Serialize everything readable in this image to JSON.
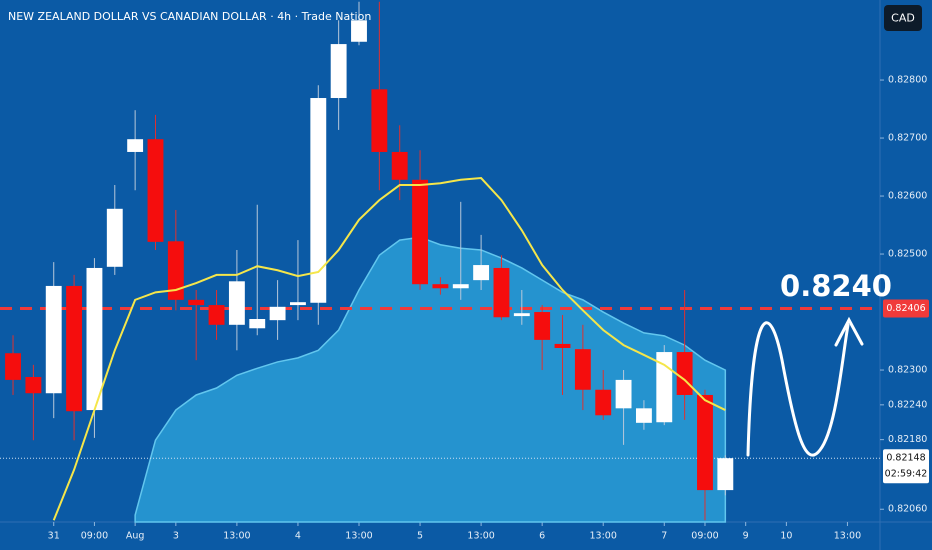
{
  "chart_data": {
    "type": "candlestick",
    "title": "NEW ZEALAND DOLLAR VS CANADIAN DOLLAR · 4h · Trade Nation",
    "currency": "CAD",
    "annotation": "0.8240",
    "ylim": [
      0.82038,
      0.82938
    ],
    "xlim": [
      -0.64,
      42.6
    ],
    "yticks": [
      {
        "value": 0.828,
        "label": "0.82800"
      },
      {
        "value": 0.827,
        "label": "0.82700"
      },
      {
        "value": 0.826,
        "label": "0.82600"
      },
      {
        "value": 0.825,
        "label": "0.82500"
      },
      {
        "value": 0.823,
        "label": "0.82300"
      },
      {
        "value": 0.8224,
        "label": "0.82240"
      },
      {
        "value": 0.8218,
        "label": "0.82180"
      },
      {
        "value": 0.8206,
        "label": "0.82060"
      }
    ],
    "xticks": [
      {
        "value": 2,
        "label": "31"
      },
      {
        "value": 4,
        "label": "09:00"
      },
      {
        "value": 6,
        "label": "Aug"
      },
      {
        "value": 8,
        "label": "3"
      },
      {
        "value": 11,
        "label": "13:00"
      },
      {
        "value": 14,
        "label": "4"
      },
      {
        "value": 17,
        "label": "13:00"
      },
      {
        "value": 20,
        "label": "5"
      },
      {
        "value": 23,
        "label": "13:00"
      },
      {
        "value": 26,
        "label": "6"
      },
      {
        "value": 29,
        "label": "13:00"
      },
      {
        "value": 32,
        "label": "7"
      },
      {
        "value": 34,
        "label": "09:00"
      },
      {
        "value": 36,
        "label": "9"
      },
      {
        "value": 38,
        "label": "10"
      },
      {
        "value": 41,
        "label": "13:00"
      }
    ],
    "up_color": "#ffffff",
    "down_color": "#f50d0d",
    "open": [
      0.82329,
      0.82288,
      0.8226,
      0.82445,
      0.82231,
      0.82478,
      0.82676,
      0.82698,
      0.82522,
      0.82421,
      0.82412,
      0.82378,
      0.82372,
      0.82386,
      0.82412,
      0.82416,
      0.82769,
      0.82866,
      0.82784,
      0.82676,
      0.82628,
      0.82448,
      0.82441,
      0.82455,
      0.82476,
      0.82393,
      0.824,
      0.82345,
      0.82336,
      0.82266,
      0.82234,
      0.82209,
      0.8221,
      0.82331,
      0.82257,
      0.82093
    ],
    "high": [
      0.8236,
      0.82309,
      0.82486,
      0.82464,
      0.82493,
      0.82619,
      0.82748,
      0.8274,
      0.82576,
      0.82438,
      0.82438,
      0.82507,
      0.82585,
      0.82455,
      0.82524,
      0.82791,
      0.82903,
      0.82935,
      0.82935,
      0.82722,
      0.82679,
      0.8246,
      0.8259,
      0.82533,
      0.82498,
      0.82438,
      0.82412,
      0.82395,
      0.82378,
      0.823,
      0.823,
      0.82248,
      0.82343,
      0.82438,
      0.82266,
      0.82153
    ],
    "low": [
      0.82257,
      0.82179,
      0.82217,
      0.82179,
      0.82183,
      0.82464,
      0.8261,
      0.82507,
      0.82403,
      0.82317,
      0.82352,
      0.82334,
      0.8236,
      0.82352,
      0.82386,
      0.82378,
      0.82714,
      0.8286,
      0.8261,
      0.82593,
      0.82438,
      0.8243,
      0.82421,
      0.82438,
      0.82386,
      0.82378,
      0.823,
      0.82257,
      0.82231,
      0.82214,
      0.82171,
      0.82197,
      0.82205,
      0.82214,
      0.82041,
      0.82084
    ],
    "close": [
      0.82283,
      0.8226,
      0.82445,
      0.82229,
      0.82476,
      0.82578,
      0.82698,
      0.82521,
      0.82421,
      0.82412,
      0.82378,
      0.82453,
      0.82388,
      0.82409,
      0.82417,
      0.82769,
      0.82862,
      0.82903,
      0.82676,
      0.82628,
      0.82448,
      0.82441,
      0.82448,
      0.82481,
      0.82391,
      0.82398,
      0.82352,
      0.82338,
      0.82266,
      0.82222,
      0.82283,
      0.82234,
      0.82331,
      0.82257,
      0.82093,
      0.82148
    ],
    "line": {
      "color": "#f5e64a",
      "values": [
        null,
        null,
        0.82041,
        0.82128,
        0.82231,
        0.82334,
        0.82421,
        0.82434,
        0.82438,
        0.8245,
        0.82464,
        0.82464,
        0.82479,
        0.82472,
        0.82462,
        0.82469,
        0.82507,
        0.82559,
        0.82593,
        0.82619,
        0.82619,
        0.82622,
        0.82628,
        0.82631,
        0.82593,
        0.82541,
        0.82481,
        0.82438,
        0.82403,
        0.82369,
        0.82343,
        0.82326,
        0.82309,
        0.82283,
        0.82248,
        0.82231
      ]
    },
    "area": {
      "color": "#2a9ed6",
      "values": [
        null,
        null,
        null,
        null,
        null,
        null,
        0.8205,
        0.82179,
        0.82231,
        0.82257,
        0.82269,
        0.82291,
        0.82303,
        0.82314,
        0.82321,
        0.82334,
        0.82369,
        0.82438,
        0.82498,
        0.82524,
        0.82529,
        0.82516,
        0.8251,
        0.82507,
        0.82493,
        0.82476,
        0.82455,
        0.82434,
        0.82421,
        0.824,
        0.82381,
        0.82364,
        0.82359,
        0.82343,
        0.82317,
        0.823
      ]
    },
    "price_line": {
      "value": 0.82406,
      "label": "0.82406",
      "color": "#f03a3a"
    },
    "last_price": {
      "value": 0.82148,
      "label": "0.82148",
      "countdown": "02:59:42"
    }
  }
}
